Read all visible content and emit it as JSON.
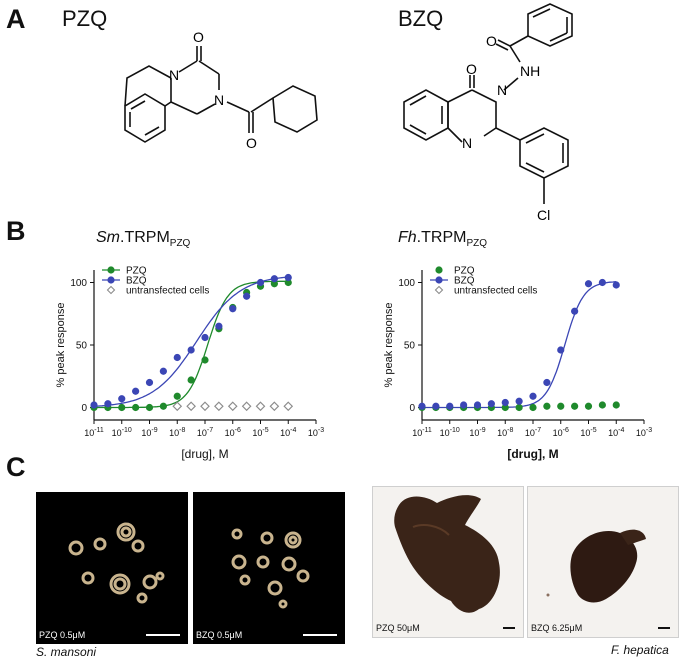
{
  "panels": {
    "a": "A",
    "b": "B",
    "c": "C"
  },
  "structures": {
    "pzq": {
      "name": "PZQ",
      "atoms": {
        "o_top": "O",
        "n1": "N",
        "n2": "N",
        "o_bottom": "O"
      }
    },
    "bzq": {
      "name": "BZQ",
      "atoms": {
        "o_amide": "O",
        "nh": "NH",
        "o_ring": "O",
        "n3": "N",
        "n1": "N",
        "cl": "Cl"
      }
    }
  },
  "chart_data": [
    {
      "type": "scatter",
      "title_italic": "Sm",
      "title_main": ".TRPM",
      "title_sub": "PZQ",
      "xlabel": "[drug], M",
      "ylabel": "% peak response",
      "x_scale": "log10",
      "xlim": [
        -11,
        -3
      ],
      "ylim": [
        -10,
        110
      ],
      "x_ticks": [
        "10-11",
        "10-10",
        "10-9",
        "10-8",
        "10-7",
        "10-6",
        "10-5",
        "10-4",
        "10-3"
      ],
      "y_ticks": [
        "0",
        "50",
        "100"
      ],
      "legend_position": "top-left",
      "series": [
        {
          "name": "PZQ",
          "color": "#1f8a2c",
          "marker": "circle",
          "fit": {
            "bottom": 0,
            "top": 101,
            "log_ec50": -6.9,
            "hill": 1.2
          },
          "x": [
            -11,
            -10.5,
            -10,
            -9.5,
            -9,
            -8.5,
            -8,
            -7.5,
            -7,
            -6.5,
            -6,
            -5.5,
            -5,
            -4.5,
            -4
          ],
          "y": [
            0,
            0,
            0,
            0,
            0,
            1,
            9,
            22,
            38,
            63,
            80,
            92,
            97,
            99,
            100
          ]
        },
        {
          "name": "BZQ",
          "color": "#3b46b5",
          "marker": "circle",
          "fit": {
            "bottom": 0,
            "top": 106,
            "log_ec50": -7.3,
            "hill": 0.55
          },
          "x": [
            -11,
            -10.5,
            -10,
            -9.5,
            -9,
            -8.5,
            -8,
            -7.5,
            -7,
            -6.5,
            -6,
            -5.5,
            -5,
            -4.5,
            -4
          ],
          "y": [
            2,
            3,
            7,
            13,
            20,
            29,
            40,
            46,
            56,
            65,
            79,
            89,
            100,
            103,
            104
          ]
        },
        {
          "name": "untransfected cells",
          "color": "#8c8c8c",
          "marker": "open-diamond",
          "x": [
            -8,
            -7.5,
            -7,
            -6.5,
            -6,
            -5.5,
            -5,
            -4.5,
            -4
          ],
          "y": [
            1,
            1,
            1,
            1,
            1,
            1,
            1,
            1,
            1
          ]
        }
      ]
    },
    {
      "type": "scatter",
      "title_italic": "Fh",
      "title_main": ".TRPM",
      "title_sub": "PZQ",
      "xlabel": "[drug], M",
      "ylabel": "% peak response",
      "x_scale": "log10",
      "xlim": [
        -11,
        -3
      ],
      "ylim": [
        -10,
        110
      ],
      "x_ticks": [
        "10-11",
        "10-10",
        "10-9",
        "10-8",
        "10-7",
        "10-6",
        "10-5",
        "10-4",
        "10-3"
      ],
      "y_ticks": [
        "0",
        "50",
        "100"
      ],
      "legend_position": "top-left",
      "series": [
        {
          "name": "PZQ",
          "color": "#1f8a2c",
          "marker": "circle",
          "x": [
            -11,
            -10.5,
            -10,
            -9.5,
            -9,
            -8.5,
            -8,
            -7.5,
            -7,
            -6.5,
            -6,
            -5.5,
            -5,
            -4.5,
            -4
          ],
          "y": [
            0,
            0,
            0,
            0,
            0,
            0,
            0,
            0,
            0,
            1,
            1,
            1,
            1,
            2,
            2
          ]
        },
        {
          "name": "BZQ",
          "color": "#3b46b5",
          "marker": "circle",
          "fit": {
            "bottom": 0,
            "top": 101,
            "log_ec50": -5.85,
            "hill": 1.3
          },
          "x": [
            -11,
            -10.5,
            -10,
            -9.5,
            -9,
            -8.5,
            -8,
            -7.5,
            -7,
            -6.5,
            -6,
            -5.5,
            -5,
            -4.5,
            -4
          ],
          "y": [
            1,
            1,
            1,
            2,
            2,
            3,
            4,
            5,
            9,
            20,
            46,
            77,
            99,
            100,
            98
          ]
        },
        {
          "name": "untransfected cells",
          "color": "#8c8c8c",
          "marker": "open-diamond",
          "x": [],
          "y": []
        }
      ]
    }
  ],
  "photos": {
    "sm_pzq": {
      "label": "PZQ 0.5μM"
    },
    "sm_bzq": {
      "label": "BZQ 0.5μM"
    },
    "fh_pzq": {
      "label": "PZQ 50μM"
    },
    "fh_bzq": {
      "label": "BZQ 6.25μM"
    },
    "sm_species": "S. mansoni",
    "fh_species": "F. hepatica"
  }
}
